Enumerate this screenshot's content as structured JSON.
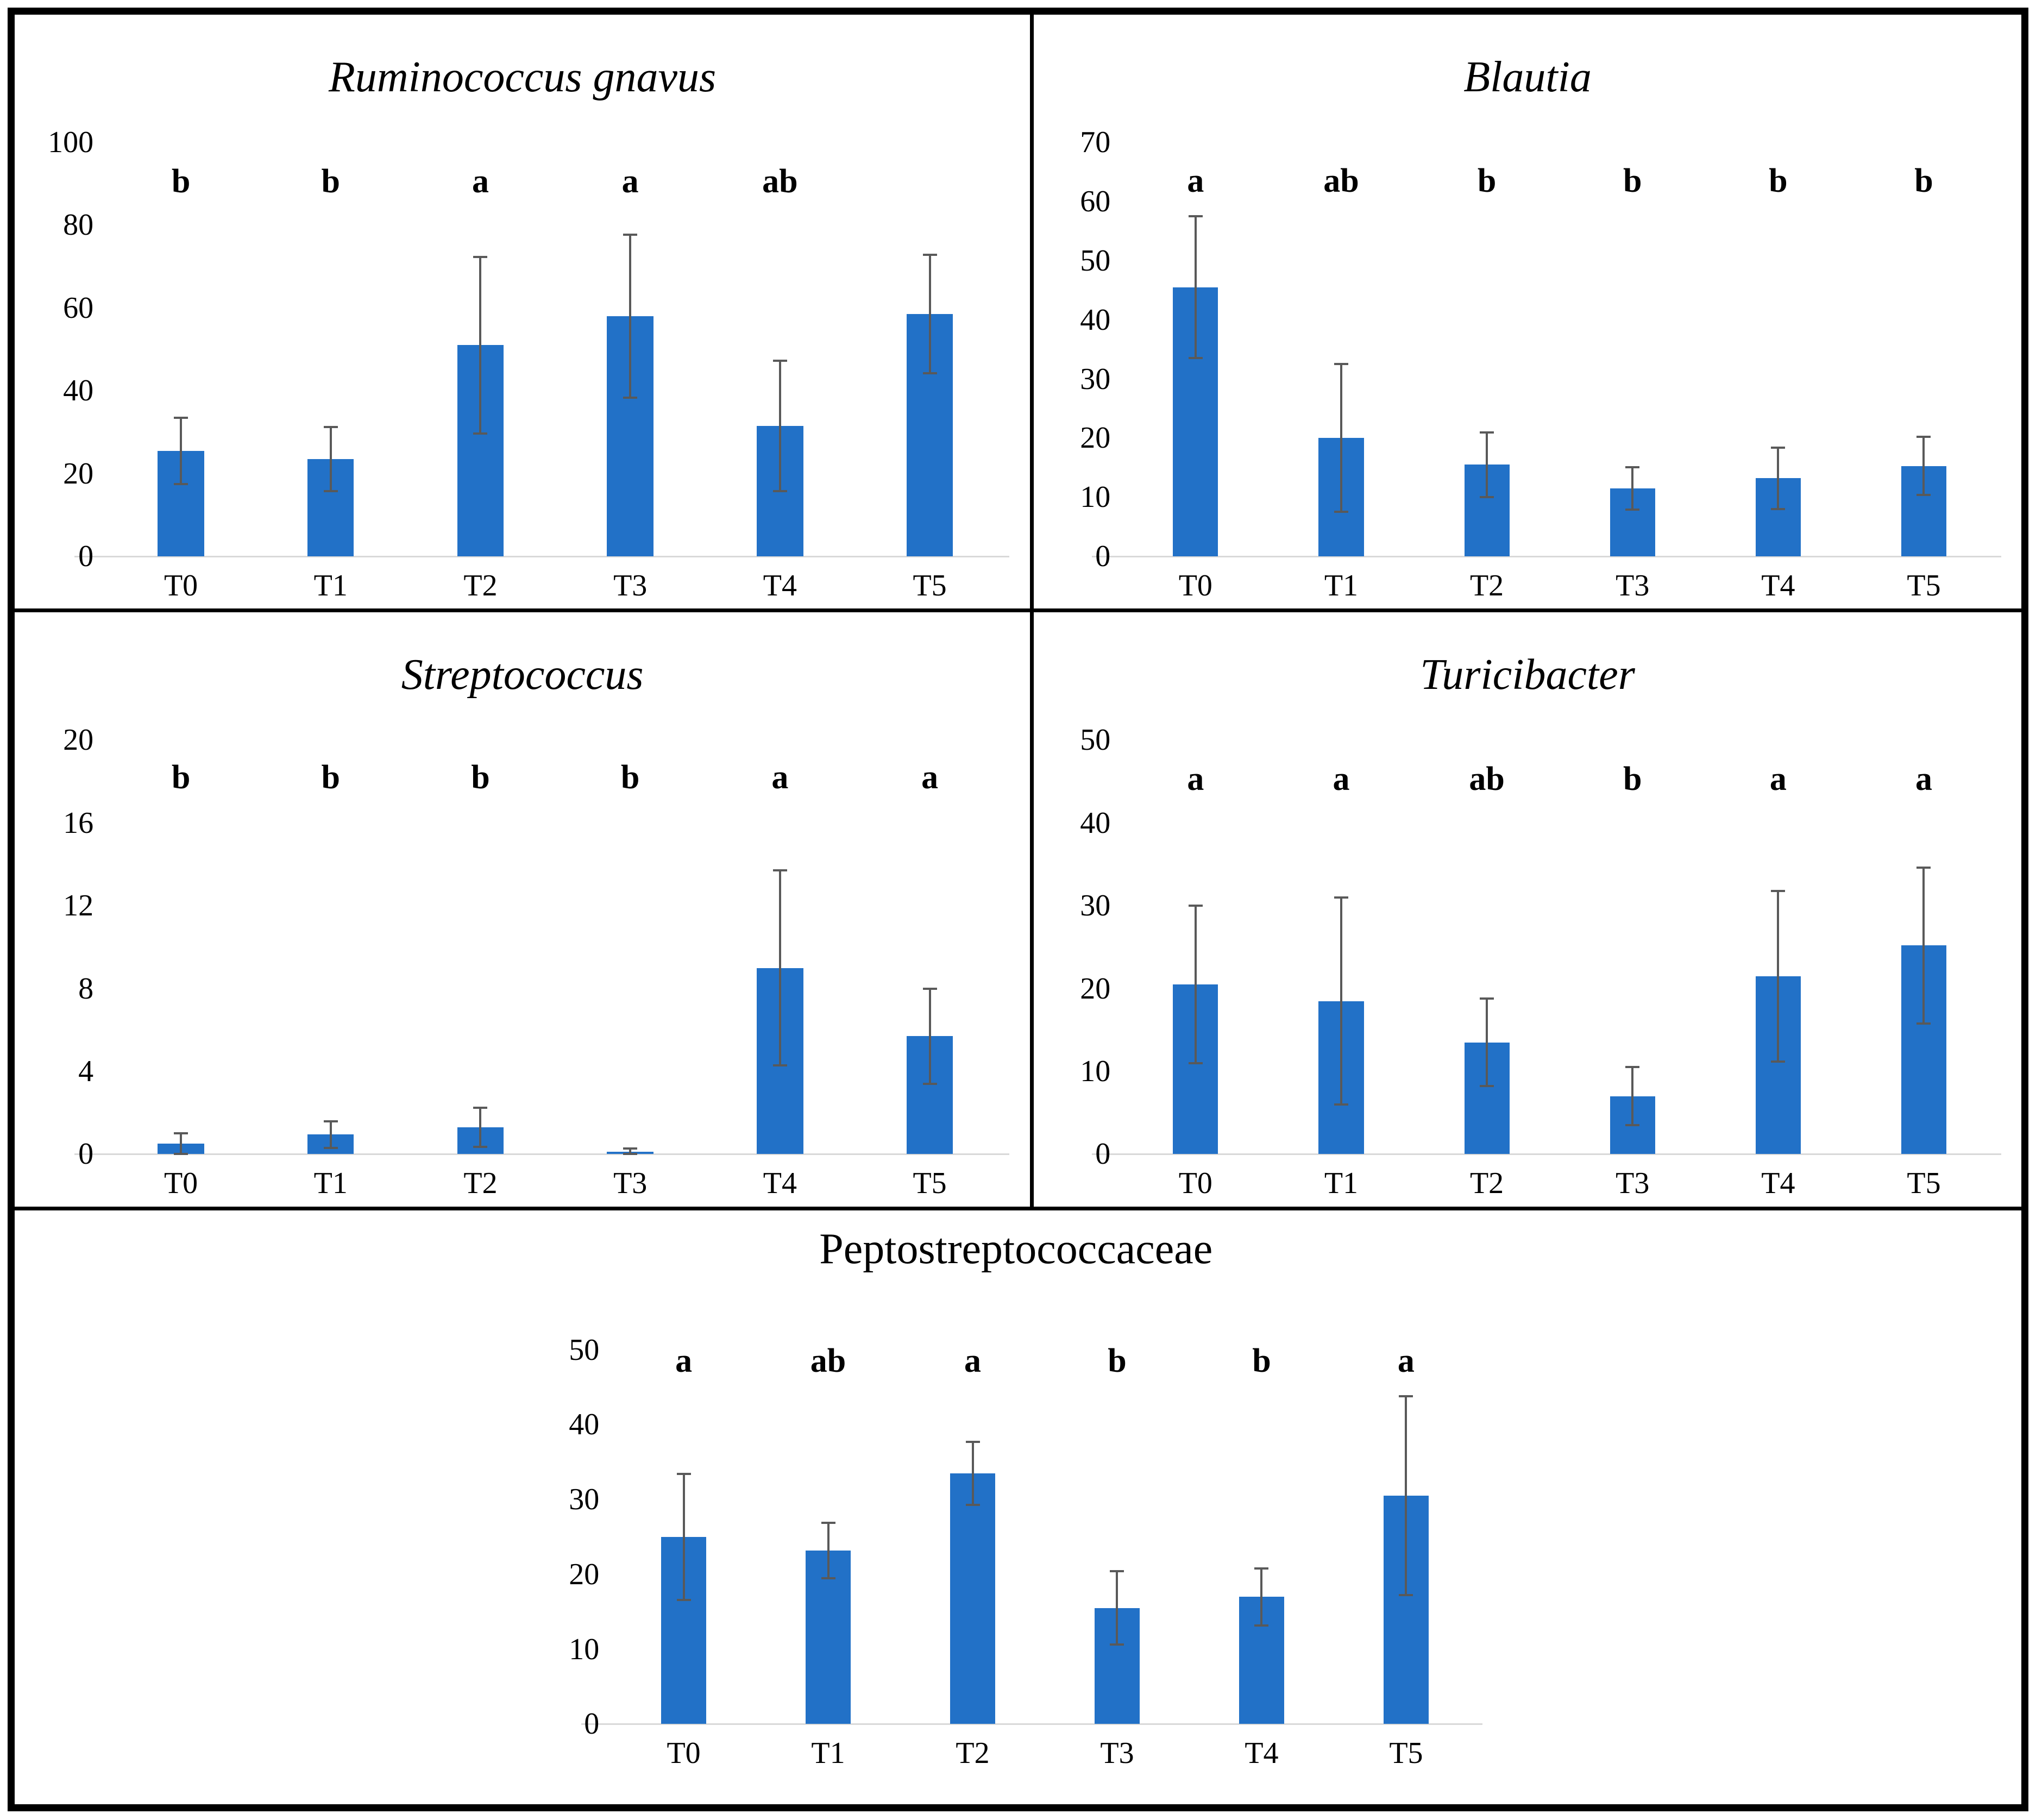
{
  "figure": {
    "bar_color": "#2271C7",
    "error_color": "#595959",
    "axis_line_color": "#D9D9D9",
    "text_color": "#000000"
  },
  "chart_data": [
    {
      "type": "bar",
      "title": "Ruminococcus gnavus",
      "title_style": "italic",
      "categories": [
        "T0",
        "T1",
        "T2",
        "T3",
        "T4",
        "T5"
      ],
      "values": [
        25.5,
        23.5,
        51,
        58,
        31.5,
        58.5
      ],
      "errors": [
        8,
        7.7,
        21.3,
        19.7,
        15.8,
        14.3
      ],
      "sig_letters": [
        "b",
        "b",
        "a",
        "a",
        "ab",
        ""
      ],
      "xlabel": "",
      "ylabel": "",
      "ylim": [
        0,
        100
      ],
      "yticks": [
        0,
        20,
        40,
        60,
        80,
        100
      ],
      "letter_y": 90.5,
      "grid": false,
      "legend": "none"
    },
    {
      "type": "bar",
      "title": "Blautia",
      "title_style": "italic",
      "categories": [
        "T0",
        "T1",
        "T2",
        "T3",
        "T4",
        "T5"
      ],
      "values": [
        45.5,
        20,
        15.5,
        11.5,
        13.2,
        15.3
      ],
      "errors": [
        12,
        12.5,
        5.5,
        3.6,
        5.2,
        4.9
      ],
      "sig_letters": [
        "a",
        "ab",
        "b",
        "b",
        "b",
        "b"
      ],
      "xlabel": "",
      "ylabel": "",
      "ylim": [
        0,
        70
      ],
      "yticks": [
        0,
        10,
        20,
        30,
        40,
        50,
        60,
        70
      ],
      "letter_y": 63.5,
      "grid": false,
      "legend": "none"
    },
    {
      "type": "bar",
      "title": "Streptococcus",
      "title_style": "italic",
      "categories": [
        "T0",
        "T1",
        "T2",
        "T3",
        "T4",
        "T5"
      ],
      "values": [
        0.5,
        0.95,
        1.3,
        0.12,
        9.0,
        5.7
      ],
      "errors": [
        0.5,
        0.65,
        0.95,
        0.15,
        4.7,
        2.3
      ],
      "sig_letters": [
        "b",
        "b",
        "b",
        "b",
        "a",
        "a"
      ],
      "xlabel": "",
      "ylabel": "",
      "ylim": [
        0,
        20
      ],
      "yticks": [
        0,
        4,
        8,
        12,
        16,
        20
      ],
      "letter_y": 18.2,
      "grid": false,
      "legend": "none"
    },
    {
      "type": "bar",
      "title": "Turicibacter",
      "title_style": "italic",
      "categories": [
        "T0",
        "T1",
        "T2",
        "T3",
        "T4",
        "T5"
      ],
      "values": [
        20.5,
        18.5,
        13.5,
        7.0,
        21.5,
        25.2
      ],
      "errors": [
        9.5,
        12.5,
        5.3,
        3.5,
        10.3,
        9.4
      ],
      "sig_letters": [
        "a",
        "a",
        "ab",
        "b",
        "a",
        "a"
      ],
      "xlabel": "",
      "ylabel": "",
      "ylim": [
        0,
        50
      ],
      "yticks": [
        0,
        10,
        20,
        30,
        40,
        50
      ],
      "letter_y": 45.3,
      "grid": false,
      "legend": "none"
    },
    {
      "type": "bar",
      "title": "Peptostreptococcaceae",
      "title_style": "normal",
      "categories": [
        "T0",
        "T1",
        "T2",
        "T3",
        "T4",
        "T5"
      ],
      "values": [
        25,
        23.2,
        33.5,
        15.5,
        17,
        30.5
      ],
      "errors": [
        8.4,
        3.7,
        4.2,
        4.9,
        3.8,
        13.3
      ],
      "sig_letters": [
        "a",
        "ab",
        "a",
        "b",
        "b",
        "a"
      ],
      "xlabel": "",
      "ylabel": "",
      "ylim": [
        0,
        50
      ],
      "yticks": [
        0,
        10,
        20,
        30,
        40,
        50
      ],
      "letter_y": 48.5,
      "grid": false,
      "legend": "none"
    }
  ]
}
